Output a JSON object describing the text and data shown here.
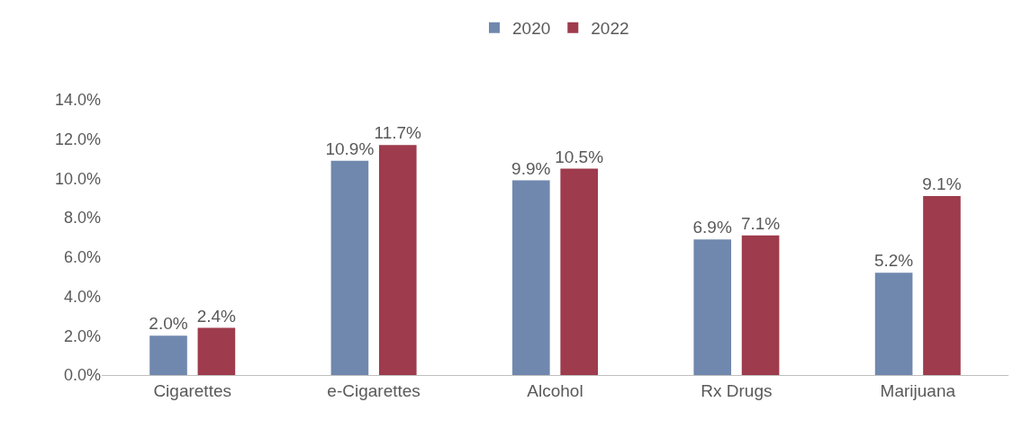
{
  "chart_data": {
    "type": "bar",
    "categories": [
      "Cigarettes",
      "e-Cigarettes",
      "Alcohol",
      "Rx Drugs",
      "Marijuana"
    ],
    "series": [
      {
        "name": "2020",
        "color": "#7088ae",
        "values": [
          2.0,
          10.9,
          9.9,
          6.9,
          5.2
        ],
        "value_labels": [
          "2.0%",
          "10.9%",
          "9.9%",
          "6.9%",
          "5.2%"
        ]
      },
      {
        "name": "2022",
        "color": "#9e3b4c",
        "values": [
          2.4,
          11.7,
          10.5,
          7.1,
          9.1
        ],
        "value_labels": [
          "2.4%",
          "11.7%",
          "10.5%",
          "7.1%",
          "9.1%"
        ]
      }
    ],
    "ylim": [
      0,
      14
    ],
    "yticks": [
      {
        "value": 0,
        "label": "0.0%"
      },
      {
        "value": 2,
        "label": "2.0%"
      },
      {
        "value": 4,
        "label": "4.0%"
      },
      {
        "value": 6,
        "label": "6.0%"
      },
      {
        "value": 8,
        "label": "8.0%"
      },
      {
        "value": 10,
        "label": "10.0%"
      },
      {
        "value": 12,
        "label": "12.0%"
      },
      {
        "value": 14,
        "label": "14.0%"
      }
    ],
    "legend": "top"
  }
}
